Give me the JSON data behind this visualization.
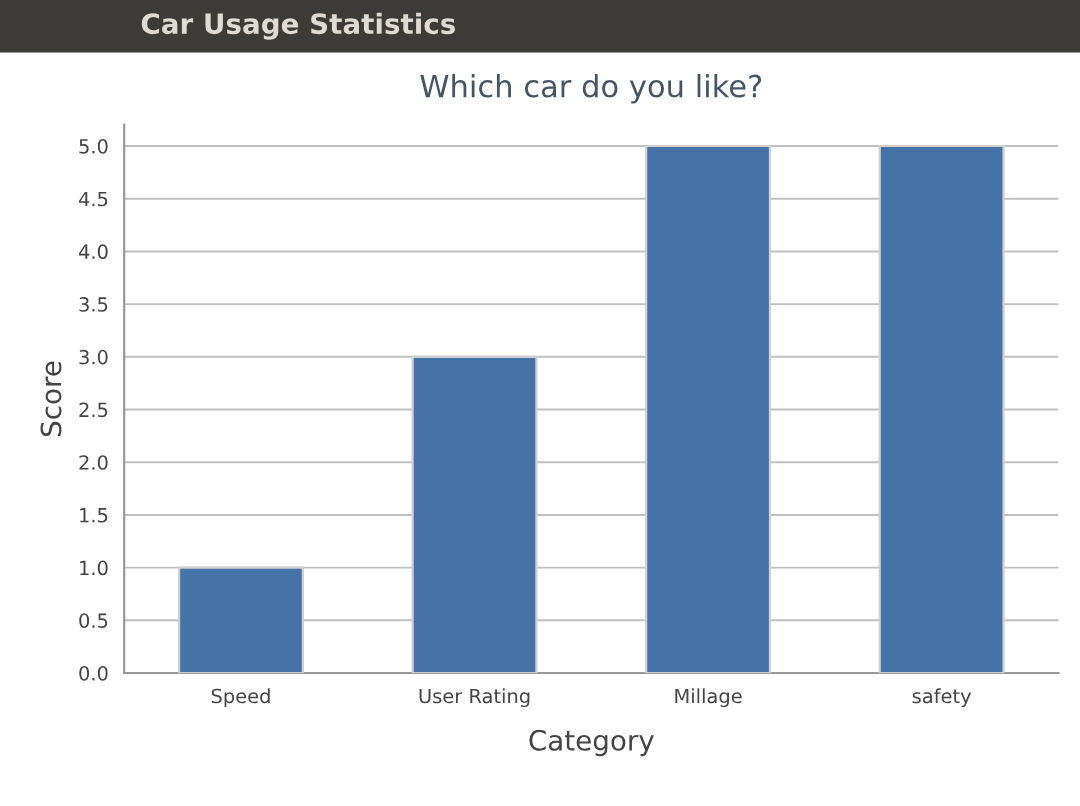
{
  "chart_data": {
    "type": "bar",
    "title": "Car Usage Statistics",
    "subtitle": "Which car do you like?",
    "xlabel": "Category",
    "ylabel": "Score",
    "categories": [
      "Speed",
      "User Rating",
      "Millage",
      "safety"
    ],
    "series": [
      {
        "color": "#4572a7",
        "values": [
          1,
          3,
          5,
          5
        ]
      }
    ],
    "ylim": [
      0,
      5.2
    ],
    "yticks": [
      {
        "value": 0,
        "label": "0.0"
      },
      {
        "value": 0.5,
        "label": "0.5"
      },
      {
        "value": 1,
        "label": "1.0"
      },
      {
        "value": 1.5,
        "label": "1.5"
      },
      {
        "value": 2,
        "label": "2.0"
      },
      {
        "value": 2.5,
        "label": "2.5"
      },
      {
        "value": 3,
        "label": "3.0"
      },
      {
        "value": 3.5,
        "label": "3.5"
      },
      {
        "value": 4,
        "label": "4.0"
      },
      {
        "value": 4.5,
        "label": "4.5"
      },
      {
        "value": 5,
        "label": "5.0"
      }
    ],
    "grid": "y"
  }
}
